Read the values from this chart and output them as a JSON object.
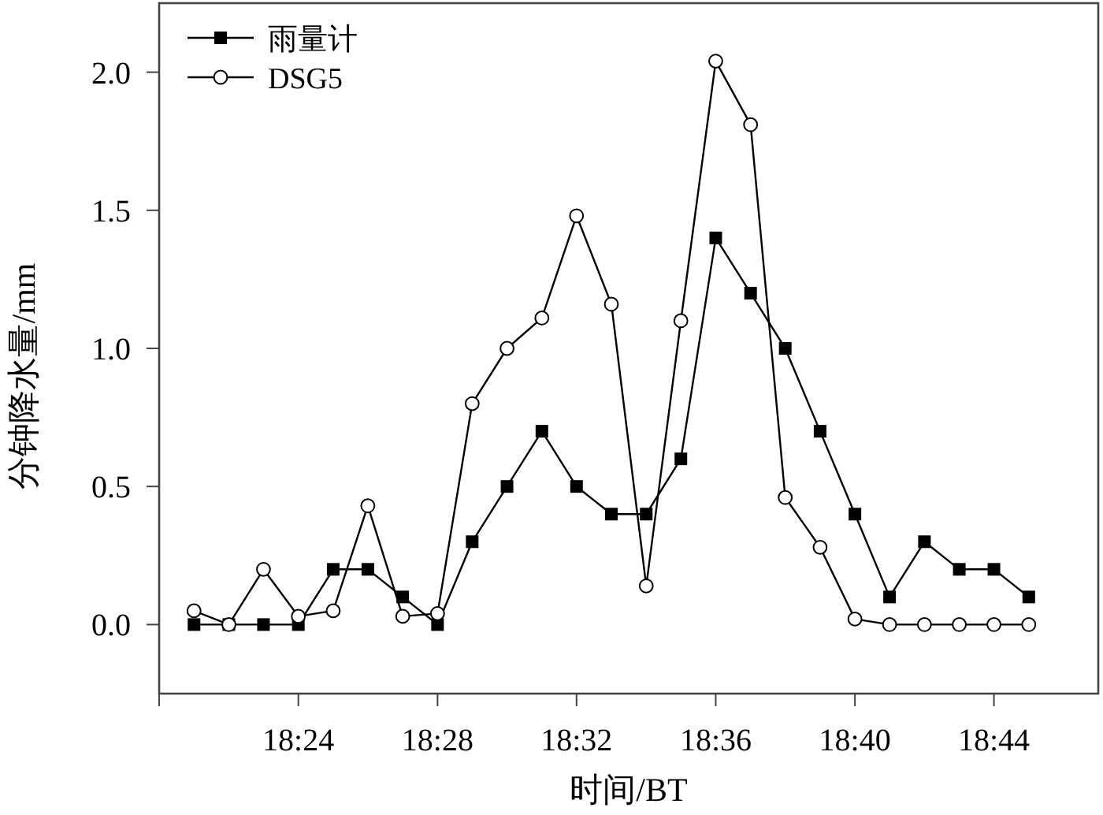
{
  "chart_data": {
    "type": "line",
    "xlabel": "时间/BT",
    "ylabel": "分钟降水量/mm",
    "x": [
      18.35,
      18.3667,
      18.3833,
      18.4,
      18.4167,
      18.4333,
      18.45,
      18.4667,
      18.4833,
      18.5,
      18.5167,
      18.5333,
      18.55,
      18.5667,
      18.5833,
      18.6,
      18.6167,
      18.6333,
      18.65,
      18.6667,
      18.6833,
      18.7,
      18.7167,
      18.7333,
      18.75
    ],
    "series": [
      {
        "name": "雨量计",
        "color": "#000000",
        "marker": "square",
        "values": [
          0,
          0,
          0,
          0,
          0.2,
          0.2,
          0.1,
          0,
          0.3,
          0.5,
          0.7,
          0.5,
          0.4,
          0.4,
          0.6,
          1.4,
          1.2,
          1.0,
          0.7,
          0.4,
          0.1,
          0.3,
          0.2,
          0.2,
          0.1
        ]
      },
      {
        "name": "DSG5",
        "color": "#000000",
        "marker": "circle",
        "values": [
          0.05,
          0,
          0.2,
          0.03,
          0.05,
          0.43,
          0.03,
          0.04,
          0.8,
          1.0,
          1.11,
          1.48,
          1.16,
          0.14,
          1.1,
          2.04,
          1.81,
          0.46,
          0.28,
          0.02,
          0,
          0,
          0,
          0,
          0
        ]
      }
    ],
    "xlim": [
      18.3333,
      18.7833
    ],
    "xticks": [
      {
        "value": 18.4,
        "label": "18:24"
      },
      {
        "value": 18.4667,
        "label": "18:28"
      },
      {
        "value": 18.5333,
        "label": "18:32"
      },
      {
        "value": 18.6,
        "label": "18:36"
      },
      {
        "value": 18.6667,
        "label": "18:40"
      },
      {
        "value": 18.7333,
        "label": "18:44"
      }
    ],
    "ylim": [
      -0.25,
      2.25
    ],
    "yticks": [
      {
        "value": 0,
        "label": "0.0"
      },
      {
        "value": 0.5,
        "label": "0.5"
      },
      {
        "value": 1,
        "label": "1.0"
      },
      {
        "value": 1.5,
        "label": "1.5"
      },
      {
        "value": 2,
        "label": "2.0"
      }
    ],
    "grid": false,
    "legend": "top left",
    "line_style": "solid"
  }
}
